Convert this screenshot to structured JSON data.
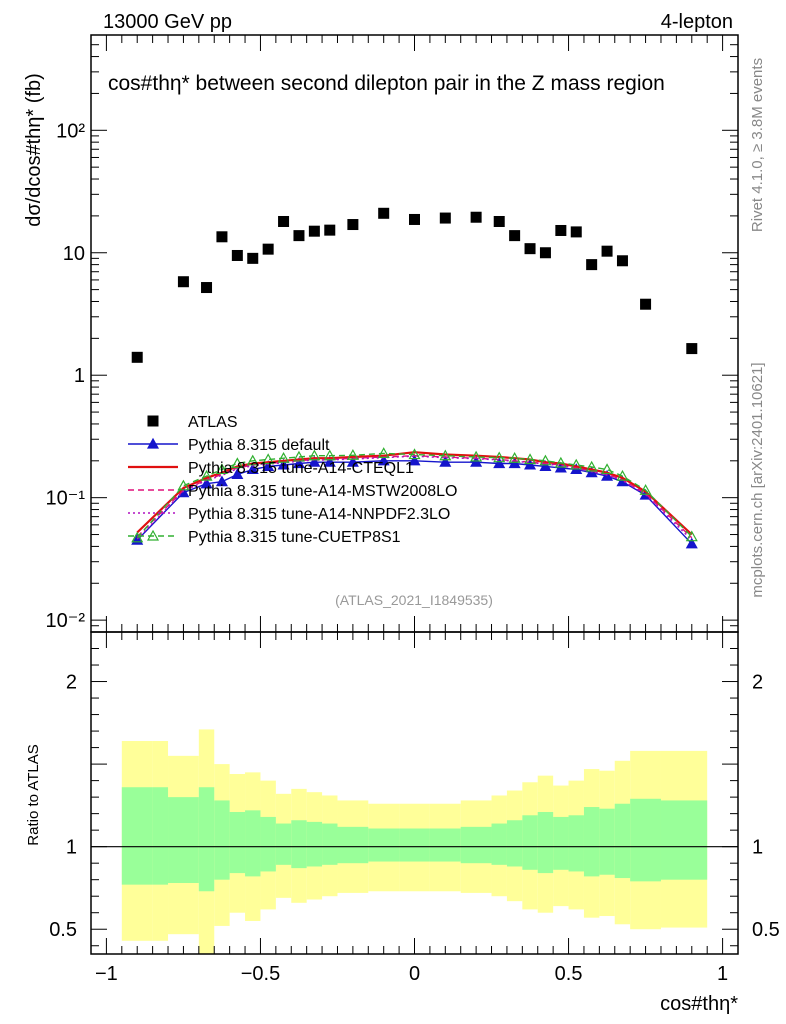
{
  "header": {
    "energy_label": "13000 GeV pp",
    "channel_label": "4-lepton"
  },
  "side": {
    "rivet_label": "Rivet 4.1.0, ≥ 3.8M events",
    "mcplots_label": "mcplots.cern.ch [arXiv:2401.10621]"
  },
  "chart_data": [
    {
      "type": "scatter",
      "panel": "main",
      "title": "cos#thη* between second dilepton pair in the Z mass region",
      "xlabel": "cos#thη*",
      "ylabel": "dσ/dcos#thη* (fb)",
      "yscale": "log",
      "xlim": [
        -1.05,
        1.05
      ],
      "ylim": [
        0.008,
        600
      ],
      "analysis_label": "(ATLAS_2021_I1849535)",
      "y_ticks": [
        {
          "value": 0.01,
          "label": "10⁻²"
        },
        {
          "value": 0.1,
          "label": "10⁻¹"
        },
        {
          "value": 1,
          "label": "1"
        },
        {
          "value": 10,
          "label": "10"
        },
        {
          "value": 100,
          "label": "10²"
        }
      ],
      "x_ticks": [
        {
          "value": -1,
          "label": "−1"
        },
        {
          "value": -0.5,
          "label": "−0.5"
        },
        {
          "value": 0,
          "label": "0"
        },
        {
          "value": 0.5,
          "label": "0.5"
        },
        {
          "value": 1,
          "label": "1"
        }
      ],
      "data_series": {
        "name": "ATLAS",
        "x": [
          -0.9,
          -0.75,
          -0.675,
          -0.625,
          -0.575,
          -0.525,
          -0.475,
          -0.425,
          -0.375,
          -0.325,
          -0.275,
          -0.2,
          -0.1,
          0.0,
          0.1,
          0.2,
          0.275,
          0.325,
          0.375,
          0.425,
          0.475,
          0.525,
          0.575,
          0.625,
          0.675,
          0.75,
          0.9
        ],
        "y": [
          1.4,
          5.8,
          5.2,
          13.5,
          9.5,
          9.0,
          10.7,
          18.0,
          13.8,
          15.0,
          15.3,
          17.0,
          21.0,
          18.7,
          19.2,
          19.5,
          18.0,
          13.8,
          10.8,
          10.0,
          15.2,
          14.8,
          8.0,
          10.3,
          8.6,
          3.8,
          1.65
        ]
      },
      "mc_x": [
        -0.9,
        -0.75,
        -0.675,
        -0.625,
        -0.575,
        -0.525,
        -0.475,
        -0.425,
        -0.375,
        -0.325,
        -0.275,
        -0.2,
        -0.1,
        0.0,
        0.1,
        0.2,
        0.275,
        0.325,
        0.375,
        0.425,
        0.475,
        0.525,
        0.575,
        0.625,
        0.675,
        0.75,
        0.9
      ],
      "series": [
        {
          "name": "Pythia 8.315 default",
          "color": "#1515cc",
          "dash": "",
          "marker": "triangle-filled",
          "values": [
            0.045,
            0.11,
            0.13,
            0.135,
            0.155,
            0.17,
            0.18,
            0.185,
            0.19,
            0.195,
            0.195,
            0.195,
            0.2,
            0.2,
            0.195,
            0.195,
            0.19,
            0.19,
            0.185,
            0.18,
            0.175,
            0.17,
            0.16,
            0.15,
            0.135,
            0.105,
            0.042
          ]
        },
        {
          "name": "Pythia 8.315 tune-A14-CTEQL1",
          "color": "#e01010",
          "dash": "",
          "marker": "none",
          "values": [
            0.052,
            0.12,
            0.145,
            0.16,
            0.18,
            0.19,
            0.195,
            0.2,
            0.205,
            0.21,
            0.21,
            0.215,
            0.22,
            0.235,
            0.225,
            0.22,
            0.215,
            0.21,
            0.205,
            0.195,
            0.19,
            0.18,
            0.17,
            0.16,
            0.145,
            0.112,
            0.05
          ]
        },
        {
          "name": "Pythia 8.315 tune-A14-MSTW2008LO",
          "color": "#e0107a",
          "dash": "6,4",
          "marker": "none",
          "values": [
            0.048,
            0.115,
            0.14,
            0.155,
            0.175,
            0.185,
            0.19,
            0.195,
            0.2,
            0.205,
            0.205,
            0.21,
            0.215,
            0.22,
            0.215,
            0.21,
            0.205,
            0.2,
            0.195,
            0.19,
            0.185,
            0.175,
            0.165,
            0.155,
            0.14,
            0.108,
            0.047
          ]
        },
        {
          "name": "Pythia 8.315 tune-A14-NNPDF2.3LO",
          "color": "#b010c0",
          "dash": "2,3",
          "marker": "none",
          "values": [
            0.046,
            0.113,
            0.138,
            0.152,
            0.172,
            0.182,
            0.188,
            0.193,
            0.198,
            0.203,
            0.203,
            0.207,
            0.212,
            0.218,
            0.212,
            0.208,
            0.203,
            0.198,
            0.193,
            0.188,
            0.183,
            0.173,
            0.163,
            0.153,
            0.138,
            0.106,
            0.045
          ]
        },
        {
          "name": "Pythia 8.315 tune-CUETP8S1",
          "color": "#30b030",
          "dash": "6,4",
          "marker": "triangle-open",
          "values": [
            0.047,
            0.125,
            0.15,
            0.17,
            0.19,
            0.2,
            0.205,
            0.21,
            0.215,
            0.22,
            0.22,
            0.222,
            0.23,
            0.225,
            0.22,
            0.215,
            0.212,
            0.21,
            0.205,
            0.2,
            0.192,
            0.185,
            0.178,
            0.17,
            0.15,
            0.115,
            0.048
          ]
        }
      ]
    },
    {
      "type": "area",
      "panel": "ratio",
      "ylabel": "Ratio to ATLAS",
      "ylim": [
        0.35,
        2.3
      ],
      "y_ticks": [
        {
          "value": 0.5,
          "label": "0.5"
        },
        {
          "value": 1,
          "label": "1"
        },
        {
          "value": 2,
          "label": "2"
        }
      ],
      "bins": [
        {
          "lo": -0.95,
          "hi": -0.85,
          "yellow": [
            0.43,
            1.64
          ],
          "green": [
            0.77,
            1.36
          ]
        },
        {
          "lo": -0.85,
          "hi": -0.8,
          "yellow": [
            0.43,
            1.64
          ],
          "green": [
            0.77,
            1.36
          ]
        },
        {
          "lo": -0.8,
          "hi": -0.7,
          "yellow": [
            0.47,
            1.55
          ],
          "green": [
            0.78,
            1.3
          ]
        },
        {
          "lo": -0.7,
          "hi": -0.65,
          "yellow": [
            0.35,
            1.71
          ],
          "green": [
            0.73,
            1.36
          ]
        },
        {
          "lo": -0.65,
          "hi": -0.6,
          "yellow": [
            0.52,
            1.5
          ],
          "green": [
            0.8,
            1.28
          ]
        },
        {
          "lo": -0.6,
          "hi": -0.55,
          "yellow": [
            0.6,
            1.44
          ],
          "green": [
            0.84,
            1.21
          ]
        },
        {
          "lo": -0.55,
          "hi": -0.5,
          "yellow": [
            0.55,
            1.45
          ],
          "green": [
            0.82,
            1.22
          ]
        },
        {
          "lo": -0.5,
          "hi": -0.45,
          "yellow": [
            0.62,
            1.4
          ],
          "green": [
            0.85,
            1.18
          ]
        },
        {
          "lo": -0.45,
          "hi": -0.4,
          "yellow": [
            0.69,
            1.32
          ],
          "green": [
            0.89,
            1.14
          ]
        },
        {
          "lo": -0.4,
          "hi": -0.35,
          "yellow": [
            0.66,
            1.35
          ],
          "green": [
            0.87,
            1.16
          ]
        },
        {
          "lo": -0.35,
          "hi": -0.3,
          "yellow": [
            0.68,
            1.33
          ],
          "green": [
            0.88,
            1.15
          ]
        },
        {
          "lo": -0.3,
          "hi": -0.25,
          "yellow": [
            0.7,
            1.31
          ],
          "green": [
            0.89,
            1.14
          ]
        },
        {
          "lo": -0.25,
          "hi": -0.15,
          "yellow": [
            0.72,
            1.28
          ],
          "green": [
            0.9,
            1.12
          ]
        },
        {
          "lo": -0.15,
          "hi": -0.05,
          "yellow": [
            0.73,
            1.26
          ],
          "green": [
            0.91,
            1.11
          ]
        },
        {
          "lo": -0.05,
          "hi": 0.05,
          "yellow": [
            0.73,
            1.26
          ],
          "green": [
            0.91,
            1.11
          ]
        },
        {
          "lo": 0.05,
          "hi": 0.15,
          "yellow": [
            0.73,
            1.26
          ],
          "green": [
            0.91,
            1.11
          ]
        },
        {
          "lo": 0.15,
          "hi": 0.25,
          "yellow": [
            0.72,
            1.28
          ],
          "green": [
            0.9,
            1.12
          ]
        },
        {
          "lo": 0.25,
          "hi": 0.3,
          "yellow": [
            0.7,
            1.31
          ],
          "green": [
            0.89,
            1.14
          ]
        },
        {
          "lo": 0.3,
          "hi": 0.35,
          "yellow": [
            0.67,
            1.34
          ],
          "green": [
            0.88,
            1.16
          ]
        },
        {
          "lo": 0.35,
          "hi": 0.4,
          "yellow": [
            0.62,
            1.39
          ],
          "green": [
            0.86,
            1.19
          ]
        },
        {
          "lo": 0.4,
          "hi": 0.45,
          "yellow": [
            0.6,
            1.43
          ],
          "green": [
            0.84,
            1.21
          ]
        },
        {
          "lo": 0.45,
          "hi": 0.5,
          "yellow": [
            0.64,
            1.37
          ],
          "green": [
            0.86,
            1.18
          ]
        },
        {
          "lo": 0.5,
          "hi": 0.55,
          "yellow": [
            0.62,
            1.4
          ],
          "green": [
            0.85,
            1.19
          ]
        },
        {
          "lo": 0.55,
          "hi": 0.6,
          "yellow": [
            0.57,
            1.47
          ],
          "green": [
            0.82,
            1.24
          ]
        },
        {
          "lo": 0.6,
          "hi": 0.65,
          "yellow": [
            0.58,
            1.46
          ],
          "green": [
            0.83,
            1.23
          ]
        },
        {
          "lo": 0.65,
          "hi": 0.7,
          "yellow": [
            0.53,
            1.52
          ],
          "green": [
            0.81,
            1.26
          ]
        },
        {
          "lo": 0.7,
          "hi": 0.8,
          "yellow": [
            0.5,
            1.58
          ],
          "green": [
            0.79,
            1.29
          ]
        },
        {
          "lo": 0.8,
          "hi": 0.95,
          "yellow": [
            0.51,
            1.58
          ],
          "green": [
            0.8,
            1.28
          ]
        }
      ]
    }
  ]
}
